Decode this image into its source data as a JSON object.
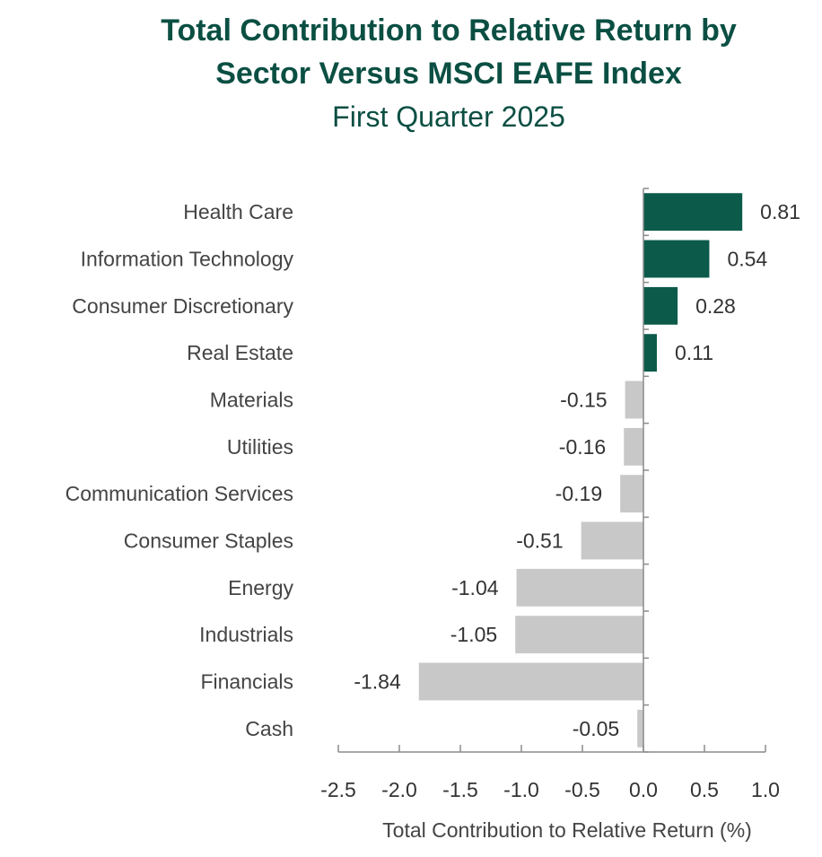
{
  "chart_data": {
    "type": "bar",
    "orientation": "horizontal",
    "title_line1": "Total Contribution to Relative Return by",
    "title_line2": "Sector Versus MSCI EAFE Index",
    "subtitle": "First Quarter 2025",
    "xlabel": "Total Contribution to Relative Return (%)",
    "ylabel": "",
    "xlim": [
      -2.5,
      1.0
    ],
    "xticks": [
      -2.5,
      -2.0,
      -1.5,
      -1.0,
      -0.5,
      0.0,
      0.5,
      1.0
    ],
    "xtick_labels": [
      "-2.5",
      "-2.0",
      "-1.5",
      "-1.0",
      "-0.5",
      "0.0",
      "0.5",
      "1.0"
    ],
    "categories": [
      "Health Care",
      "Information Technology",
      "Consumer Discretionary",
      "Real Estate",
      "Materials",
      "Utilities",
      "Communication Services",
      "Consumer Staples",
      "Energy",
      "Industrials",
      "Financials",
      "Cash"
    ],
    "values": [
      0.81,
      0.54,
      0.28,
      0.11,
      -0.15,
      -0.16,
      -0.19,
      -0.51,
      -1.04,
      -1.05,
      -1.84,
      -0.05
    ],
    "value_labels": [
      "0.81",
      "0.54",
      "0.28",
      "0.11",
      "-0.15",
      "-0.16",
      "-0.19",
      "-0.51",
      "-1.04",
      "-1.05",
      "-1.84",
      "-0.05"
    ],
    "positive_color": "#0b5a4a",
    "negative_color": "#c8c8c8",
    "title_color": "#0b4f43",
    "grid": false,
    "legend": false
  }
}
